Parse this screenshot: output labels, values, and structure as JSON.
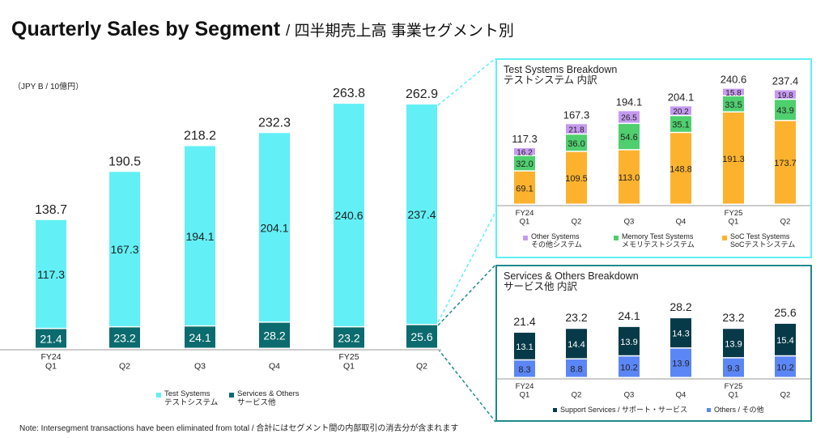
{
  "title": {
    "main": "Quarterly Sales by Segment",
    "sub": "/ 四半期売上高 事業セグメント別"
  },
  "note": "Note: Intersegment transactions have been eliminated from total / 合計にはセグメント間の内部取引の消去分が含まれます",
  "chart_data": [
    {
      "type": "bar",
      "stacked": true,
      "unit_label": "（JPY B / 10億円）",
      "categories": [
        [
          "FY24",
          "Q1"
        ],
        [
          "",
          "Q2"
        ],
        [
          "",
          "Q3"
        ],
        [
          "",
          "Q4"
        ],
        [
          "FY25",
          "Q1"
        ],
        [
          "",
          "Q2"
        ]
      ],
      "series": [
        {
          "name": "Services & Others サービス他",
          "color": "#0b6b6e",
          "values": [
            21.4,
            23.2,
            24.1,
            28.2,
            23.2,
            25.6
          ]
        },
        {
          "name": "Test Systems テストシステム",
          "color": "#62f0f6",
          "values": [
            117.3,
            167.3,
            194.1,
            204.1,
            240.6,
            237.4
          ]
        }
      ],
      "totals": [
        138.7,
        190.5,
        218.2,
        232.3,
        263.8,
        262.9
      ],
      "legend": [
        [
          "Test Systems",
          "テストシステム"
        ],
        [
          "Services & Others",
          "サービス他"
        ]
      ]
    },
    {
      "type": "bar",
      "stacked": true,
      "title": "Test Systems Breakdown",
      "subtitle": "テストシステム 内訳",
      "categories": [
        [
          "FY24",
          "Q1"
        ],
        [
          "",
          "Q2"
        ],
        [
          "",
          "Q3"
        ],
        [
          "",
          "Q4"
        ],
        [
          "FY25",
          "Q1"
        ],
        [
          "",
          "Q2"
        ]
      ],
      "series": [
        {
          "name": "SoC Test Systems SoCテストシステム",
          "color": "#fdb22e",
          "values": [
            69.1,
            109.5,
            113.0,
            148.8,
            191.3,
            173.7
          ]
        },
        {
          "name": "Memory Test Systems メモリテストシステム",
          "color": "#4fcf6e",
          "values": [
            32.0,
            36.0,
            54.6,
            35.1,
            33.5,
            43.9
          ]
        },
        {
          "name": "Other Systems その他システム",
          "color": "#c69af0",
          "values": [
            16.2,
            21.8,
            26.5,
            20.2,
            15.8,
            19.8
          ]
        }
      ],
      "totals": [
        117.3,
        167.3,
        194.1,
        204.1,
        240.6,
        237.4
      ],
      "legend": [
        [
          "Other Systems",
          "その他システム",
          "#c69af0"
        ],
        [
          "Memory Test Systems",
          "メモリテストシステム",
          "#4fcf6e"
        ],
        [
          "SoC Test Systems",
          "SoCテストシステム",
          "#fdb22e"
        ]
      ]
    },
    {
      "type": "bar",
      "stacked": true,
      "title": "Services & Others Breakdown",
      "subtitle": "サービス他 内訳",
      "categories": [
        [
          "FY24",
          "Q1"
        ],
        [
          "",
          "Q2"
        ],
        [
          "",
          "Q3"
        ],
        [
          "",
          "Q4"
        ],
        [
          "FY25",
          "Q1"
        ],
        [
          "",
          "Q2"
        ]
      ],
      "series": [
        {
          "name": "Others / その他",
          "color": "#5b86f5",
          "values": [
            8.3,
            8.8,
            10.2,
            13.9,
            9.3,
            10.2
          ]
        },
        {
          "name": "Support Services / サポート・サービス",
          "color": "#073a48",
          "values": [
            13.1,
            14.4,
            13.9,
            14.3,
            13.9,
            15.4
          ]
        }
      ],
      "totals": [
        21.4,
        23.2,
        24.1,
        28.2,
        23.2,
        25.6
      ],
      "legend": [
        [
          "Support Services / サポート・サービス",
          "#073a48"
        ],
        [
          "Others / その他",
          "#5b86f5"
        ]
      ]
    }
  ]
}
